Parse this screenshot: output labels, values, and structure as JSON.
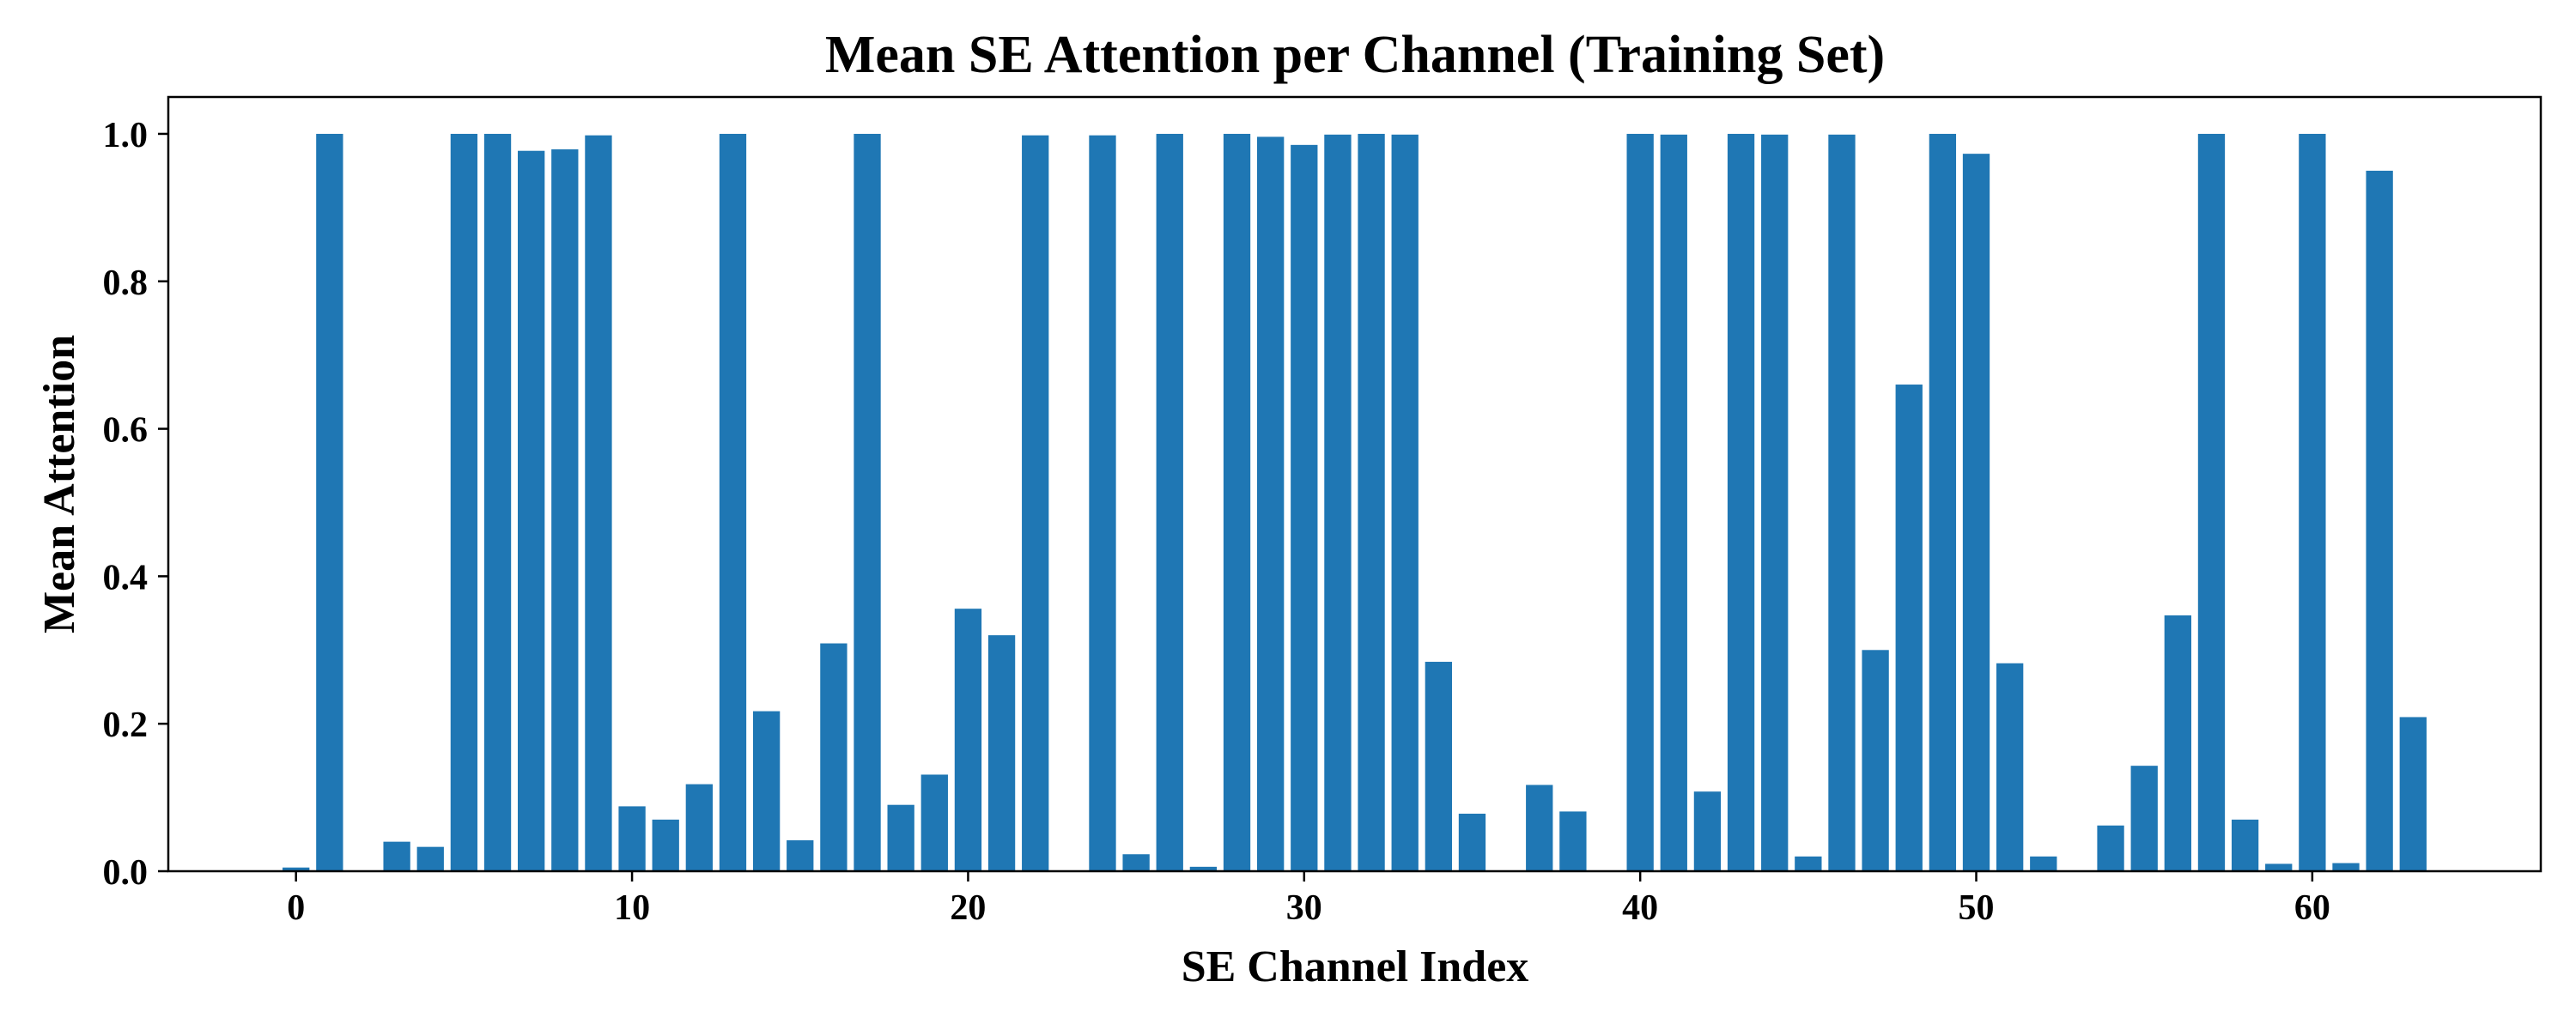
{
  "chart_data": {
    "type": "bar",
    "title": "Mean SE Attention per Channel (Training Set)",
    "xlabel": "SE Channel Index",
    "ylabel": "Mean Attention",
    "xlim": [
      -3.8,
      66.8
    ],
    "ylim": [
      0,
      1.05
    ],
    "xticks": [
      0,
      10,
      20,
      30,
      40,
      50,
      60
    ],
    "xtick_labels": [
      "0",
      "10",
      "20",
      "30",
      "40",
      "50",
      "60"
    ],
    "yticks": [
      0.0,
      0.2,
      0.4,
      0.6,
      0.8,
      1.0
    ],
    "ytick_labels": [
      "0.0",
      "0.2",
      "0.4",
      "0.6",
      "0.8",
      "1.0"
    ],
    "grid": false,
    "bar_color": "#1f77b4",
    "x": [
      0,
      1,
      2,
      3,
      4,
      5,
      6,
      7,
      8,
      9,
      10,
      11,
      12,
      13,
      14,
      15,
      16,
      17,
      18,
      19,
      20,
      21,
      22,
      23,
      24,
      25,
      26,
      27,
      28,
      29,
      30,
      31,
      32,
      33,
      34,
      35,
      36,
      37,
      38,
      39,
      40,
      41,
      42,
      43,
      44,
      45,
      46,
      47,
      48,
      49,
      50,
      51,
      52,
      53,
      54,
      55,
      56,
      57,
      58,
      59,
      60,
      61,
      62,
      63
    ],
    "values": [
      0.005,
      1.0,
      0.0,
      0.04,
      0.033,
      1.0,
      1.0,
      0.977,
      0.979,
      0.998,
      0.088,
      0.07,
      0.118,
      1.0,
      0.217,
      0.042,
      0.309,
      1.0,
      0.09,
      0.131,
      0.356,
      0.32,
      0.998,
      0.0,
      0.998,
      0.023,
      1.0,
      0.006,
      1.0,
      0.996,
      0.985,
      0.999,
      1.0,
      0.999,
      0.284,
      0.078,
      0.0,
      0.117,
      0.081,
      0.0,
      1.0,
      0.999,
      0.108,
      1.0,
      0.999,
      0.02,
      0.999,
      0.3,
      0.66,
      1.0,
      0.973,
      0.282,
      0.02,
      0.0,
      0.062,
      0.143,
      0.347,
      1.0,
      0.07,
      0.01,
      1.0,
      0.011,
      0.95,
      0.209
    ]
  }
}
